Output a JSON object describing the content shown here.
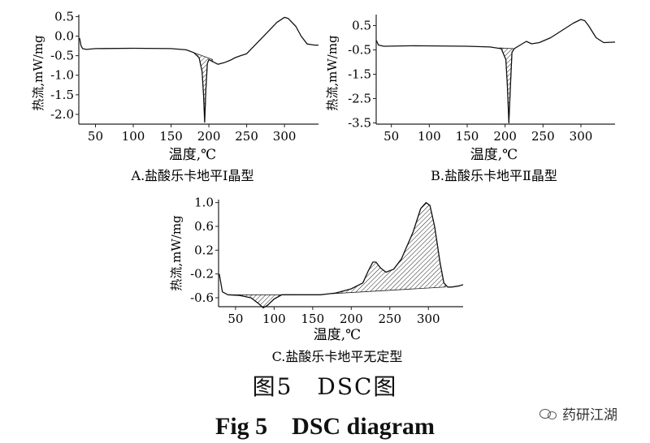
{
  "chart_data": [
    {
      "id": "A",
      "type": "line",
      "subtitle": "A.盐酸乐卡地平Ⅰ晶型",
      "xlabel": "温度,℃",
      "ylabel": "热流,mW/mg",
      "xlim": [
        28,
        345
      ],
      "ylim": [
        -2.25,
        0.55
      ],
      "xticks": [
        50,
        100,
        150,
        200,
        250,
        300
      ],
      "yticks": [
        0.5,
        0.0,
        -0.5,
        -1.0,
        -1.5,
        -2.0
      ],
      "ytick_labels": [
        "0.5",
        "0.0",
        "-0.5",
        "-1.0",
        "-1.5",
        "-2.0"
      ],
      "points": [
        [
          29,
          -0.05
        ],
        [
          31,
          -0.25
        ],
        [
          33,
          -0.32
        ],
        [
          38,
          -0.34
        ],
        [
          50,
          -0.32
        ],
        [
          100,
          -0.31
        ],
        [
          150,
          -0.32
        ],
        [
          170,
          -0.35
        ],
        [
          180,
          -0.42
        ],
        [
          187,
          -0.55
        ],
        [
          191,
          -0.9
        ],
        [
          193,
          -1.5
        ],
        [
          194.5,
          -2.2
        ],
        [
          196,
          -1.4
        ],
        [
          198,
          -0.7
        ],
        [
          200,
          -0.6
        ],
        [
          205,
          -0.65
        ],
        [
          212,
          -0.72
        ],
        [
          220,
          -0.68
        ],
        [
          228,
          -0.62
        ],
        [
          235,
          -0.55
        ],
        [
          242,
          -0.5
        ],
        [
          250,
          -0.45
        ],
        [
          260,
          -0.25
        ],
        [
          270,
          -0.05
        ],
        [
          280,
          0.15
        ],
        [
          290,
          0.35
        ],
        [
          300,
          0.48
        ],
        [
          305,
          0.45
        ],
        [
          315,
          0.25
        ],
        [
          322,
          0.0
        ],
        [
          330,
          -0.2
        ],
        [
          340,
          -0.23
        ],
        [
          345,
          -0.23
        ]
      ],
      "shaded": {
        "from": 170,
        "to": 205,
        "baseline_from": -0.35,
        "baseline_to": -0.6
      }
    },
    {
      "id": "B",
      "type": "line",
      "subtitle": "B.盐酸乐卡地平Ⅱ晶型",
      "xlabel": "温度,℃",
      "ylabel": "热流,mW/mg",
      "xlim": [
        30,
        345
      ],
      "ylim": [
        -3.55,
        0.95
      ],
      "xticks": [
        50,
        100,
        150,
        200,
        250,
        300
      ],
      "yticks": [
        0.5,
        -0.5,
        -1.5,
        -2.5,
        -3.5
      ],
      "ytick_labels": [
        "0.5",
        "-0.5",
        "-1.5",
        "-2.5",
        "-3.5"
      ],
      "points": [
        [
          30,
          -0.1
        ],
        [
          33,
          -0.3
        ],
        [
          40,
          -0.35
        ],
        [
          80,
          -0.33
        ],
        [
          150,
          -0.35
        ],
        [
          180,
          -0.38
        ],
        [
          195,
          -0.45
        ],
        [
          201,
          -0.9
        ],
        [
          203,
          -2.0
        ],
        [
          205,
          -3.5
        ],
        [
          207,
          -2.0
        ],
        [
          209,
          -0.6
        ],
        [
          212,
          -0.45
        ],
        [
          220,
          -0.3
        ],
        [
          228,
          -0.15
        ],
        [
          235,
          -0.25
        ],
        [
          245,
          -0.2
        ],
        [
          260,
          0.0
        ],
        [
          275,
          0.3
        ],
        [
          290,
          0.6
        ],
        [
          300,
          0.75
        ],
        [
          305,
          0.7
        ],
        [
          310,
          0.5
        ],
        [
          320,
          0.0
        ],
        [
          330,
          -0.2
        ],
        [
          345,
          -0.18
        ]
      ],
      "shaded": {
        "from": 193,
        "to": 212,
        "baseline_from": -0.42,
        "baseline_to": -0.45
      }
    },
    {
      "id": "C",
      "type": "line",
      "subtitle": "C.盐酸乐卡地平无定型",
      "xlabel": "温度,℃",
      "ylabel": "热流,mW/mg",
      "xlim": [
        28,
        345
      ],
      "ylim": [
        -0.75,
        1.05
      ],
      "xticks": [
        50,
        100,
        150,
        200,
        250,
        300
      ],
      "yticks": [
        1.0,
        0.6,
        0.2,
        -0.2,
        -0.6
      ],
      "ytick_labels": [
        "1.0",
        "0.6",
        "0.2",
        "-0.2",
        "-0.6"
      ],
      "points": [
        [
          29,
          -0.2
        ],
        [
          33,
          -0.5
        ],
        [
          40,
          -0.55
        ],
        [
          55,
          -0.56
        ],
        [
          70,
          -0.6
        ],
        [
          80,
          -0.7
        ],
        [
          86,
          -0.77
        ],
        [
          92,
          -0.72
        ],
        [
          100,
          -0.62
        ],
        [
          110,
          -0.55
        ],
        [
          130,
          -0.55
        ],
        [
          160,
          -0.55
        ],
        [
          180,
          -0.52
        ],
        [
          200,
          -0.45
        ],
        [
          215,
          -0.35
        ],
        [
          222,
          -0.15
        ],
        [
          228,
          0.0
        ],
        [
          232,
          0.0
        ],
        [
          238,
          -0.1
        ],
        [
          245,
          -0.17
        ],
        [
          255,
          -0.12
        ],
        [
          265,
          0.05
        ],
        [
          280,
          0.5
        ],
        [
          290,
          0.9
        ],
        [
          297,
          1.0
        ],
        [
          302,
          0.95
        ],
        [
          308,
          0.6
        ],
        [
          315,
          0.0
        ],
        [
          320,
          -0.35
        ],
        [
          325,
          -0.42
        ],
        [
          330,
          -0.42
        ],
        [
          340,
          -0.4
        ],
        [
          345,
          -0.38
        ]
      ],
      "shaded_regions": [
        {
          "from": 40,
          "to": 130,
          "baseline_from": -0.55,
          "baseline_to": -0.55
        },
        {
          "from": 175,
          "to": 322,
          "baseline_from": -0.53,
          "baseline_to": -0.42
        }
      ]
    }
  ],
  "captions": {
    "cn": "图5　DSC图",
    "en": "Fig 5　DSC diagram"
  },
  "watermark": "药研江湖"
}
